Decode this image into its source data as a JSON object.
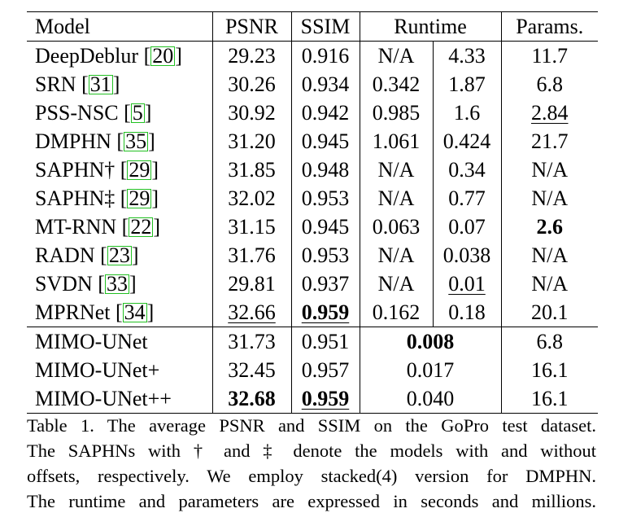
{
  "table": {
    "headers": {
      "model": "Model",
      "psnr": "PSNR",
      "ssim": "SSIM",
      "runtime": "Runtime",
      "params": "Params."
    },
    "rows": [
      {
        "name": "DeepDeblur ",
        "ref": "20",
        "close": "]",
        "open": "[",
        "psnr": "29.23",
        "ssim": "0.916",
        "rt1": "N/A",
        "rt2": "4.33",
        "params": "11.7"
      },
      {
        "name": "SRN ",
        "ref": "31",
        "close": "]",
        "open": "[",
        "psnr": "30.26",
        "ssim": "0.934",
        "rt1": "0.342",
        "rt2": "1.87",
        "params": "6.8"
      },
      {
        "name": "PSS-NSC ",
        "ref": "5",
        "close": "]",
        "open": "[",
        "psnr": "30.92",
        "ssim": "0.942",
        "rt1": "0.985",
        "rt2": "1.6",
        "params": "2.84"
      },
      {
        "name": "DMPHN ",
        "ref": "35",
        "close": "]",
        "open": "[",
        "psnr": "31.20",
        "ssim": "0.945",
        "rt1": "1.061",
        "rt2": "0.424",
        "params": "21.7"
      },
      {
        "name": "SAPHN† ",
        "ref": "29",
        "close": "]",
        "open": "[",
        "psnr": "31.85",
        "ssim": "0.948",
        "rt1": "N/A",
        "rt2": "0.34",
        "params": "N/A"
      },
      {
        "name": "SAPHN‡ ",
        "ref": "29",
        "close": "]",
        "open": "[",
        "psnr": "32.02",
        "ssim": "0.953",
        "rt1": "N/A",
        "rt2": "0.77",
        "params": "N/A"
      },
      {
        "name": "MT-RNN ",
        "ref": "22",
        "close": "]",
        "open": "[",
        "psnr": "31.15",
        "ssim": "0.945",
        "rt1": "0.063",
        "rt2": "0.07",
        "params": "2.6"
      },
      {
        "name": "RADN ",
        "ref": "23",
        "close": "]",
        "open": "[",
        "psnr": "31.76",
        "ssim": "0.953",
        "rt1": "N/A",
        "rt2": "0.038",
        "params": "N/A"
      },
      {
        "name": "SVDN ",
        "ref": "33",
        "close": "]",
        "open": "[",
        "psnr": "29.81",
        "ssim": "0.937",
        "rt1": "N/A",
        "rt2": "0.01",
        "params": "N/A"
      },
      {
        "name": "MPRNet ",
        "ref": "34",
        "close": "]",
        "open": "[",
        "psnr": "32.66",
        "ssim": "0.959",
        "rt1": "0.162",
        "rt2": "0.18",
        "params": "20.1"
      }
    ],
    "ours": [
      {
        "name": "MIMO-UNet",
        "psnr": "31.73",
        "ssim": "0.951",
        "runtime": "0.008",
        "params": "6.8"
      },
      {
        "name": "MIMO-UNet+",
        "psnr": "32.45",
        "ssim": "0.957",
        "runtime": "0.017",
        "params": "16.1"
      },
      {
        "name": "MIMO-UNet++",
        "psnr": "32.68",
        "ssim": "0.959",
        "runtime": "0.040",
        "params": "16.1"
      }
    ]
  },
  "caption": {
    "line1": "Table 1. The average PSNR and SSIM on the GoPro test dataset.",
    "line2": "The SAPHNs with † and ‡ denote the models with and without",
    "line3": "offsets, respectively. We employ stacked(4) version for DMPHN.",
    "line4": "The runtime and parameters are expressed in seconds and millions."
  }
}
